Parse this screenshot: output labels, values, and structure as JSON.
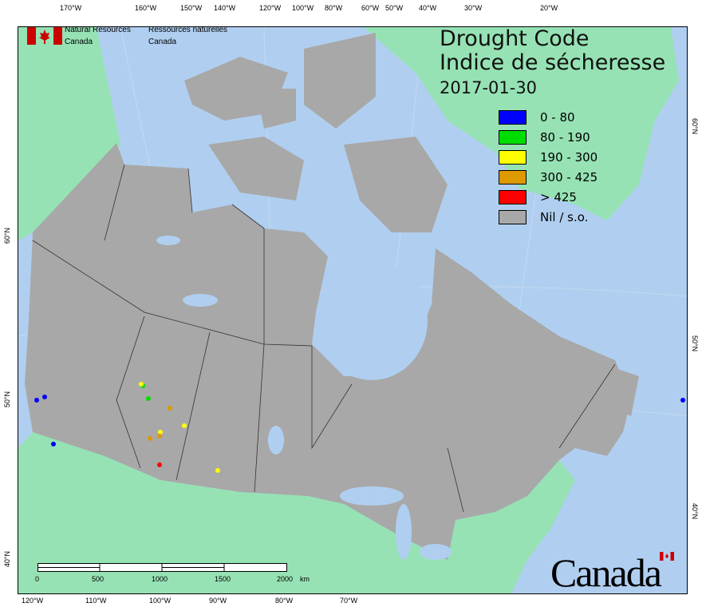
{
  "agency": {
    "en_line1": "Natural Resources",
    "en_line2": "Canada",
    "fr_line1": "Ressources naturelles",
    "fr_line2": "Canada"
  },
  "title": {
    "en": "Drought Code",
    "fr": "Indice de sécheresse",
    "date": "2017-01-30"
  },
  "legend": [
    {
      "label": "0 - 80",
      "color": "#0000ff"
    },
    {
      "label": "80 - 190",
      "color": "#00dd00"
    },
    {
      "label": "190 - 300",
      "color": "#ffff00"
    },
    {
      "label": "300 - 425",
      "color": "#dd9900"
    },
    {
      "label": "> 425",
      "color": "#ff0000"
    },
    {
      "label": "Nil / s.o.",
      "color": "#a8a8a8"
    }
  ],
  "top_ticks": [
    "170°W",
    "160°W",
    "150°W",
    "140°W",
    "120°W",
    "100°W",
    "80°W",
    "60°W",
    "50°W",
    "40°W",
    "30°W",
    "20°W"
  ],
  "bottom_ticks": [
    "120°W",
    "110°W",
    "100°W",
    "90°W",
    "80°W",
    "70°W"
  ],
  "left_ticks": [
    "60°N",
    "50°N",
    "40°N"
  ],
  "right_ticks": [
    "60°N",
    "50°N",
    "40°N"
  ],
  "scale": {
    "labels": [
      "0",
      "500",
      "1000",
      "1500",
      "2000"
    ],
    "unit": "km"
  },
  "wordmark": "Canada",
  "colors": {
    "water": "#b0cff0",
    "land_other": "#96e2b4",
    "canada_nil": "#a8a8a8"
  }
}
